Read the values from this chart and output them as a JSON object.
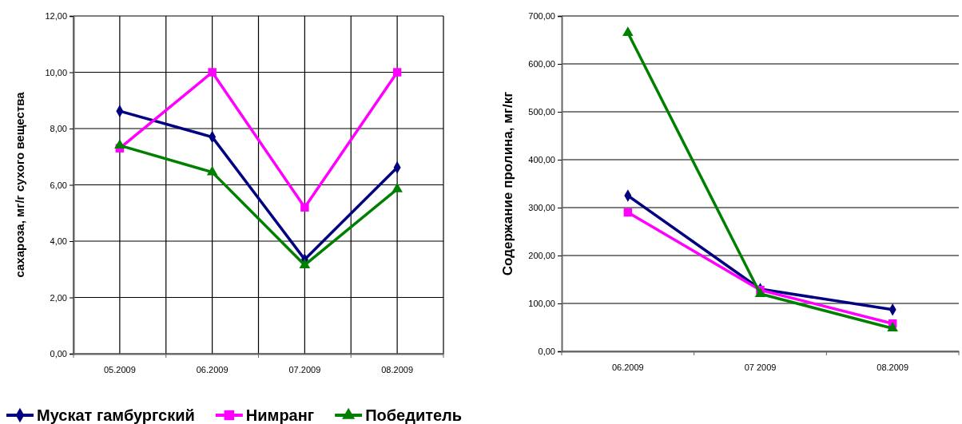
{
  "chart_data": [
    {
      "type": "line",
      "ylabel": "сахароза, мг/г сухого вещества",
      "categories": [
        "05.2009",
        "06.2009",
        "07.2009",
        "08.2009"
      ],
      "ylim": [
        0,
        12
      ],
      "yticks": [
        {
          "value": 0,
          "label": "0,00"
        },
        {
          "value": 2,
          "label": "2,00"
        },
        {
          "value": 4,
          "label": "4,00"
        },
        {
          "value": 6,
          "label": "6,00"
        },
        {
          "value": 8,
          "label": "8,00"
        },
        {
          "value": 10,
          "label": "10,00"
        },
        {
          "value": 12,
          "label": "12,00"
        }
      ],
      "grid": true,
      "legend": "bottom",
      "series": [
        {
          "name": "Мускат гамбургский",
          "color": "#000080",
          "marker": "diamond",
          "values": [
            8.62,
            7.7,
            3.35,
            6.62
          ]
        },
        {
          "name": "Нимранг",
          "color": "#ff00ff",
          "marker": "square",
          "values": [
            7.3,
            10.0,
            5.2,
            10.0
          ]
        },
        {
          "name": "Победитель",
          "color": "#008000",
          "marker": "triangle",
          "values": [
            7.4,
            6.45,
            3.15,
            5.85
          ]
        }
      ]
    },
    {
      "type": "line",
      "ylabel": "Содержание пролина, мг/кг",
      "categories": [
        "06.2009",
        "07 2009",
        "08.2009"
      ],
      "ylim": [
        0,
        700
      ],
      "yticks": [
        {
          "value": 0,
          "label": "0,00"
        },
        {
          "value": 100,
          "label": "100,00"
        },
        {
          "value": 200,
          "label": "200,00"
        },
        {
          "value": 300,
          "label": "300,00"
        },
        {
          "value": 400,
          "label": "400,00"
        },
        {
          "value": 500,
          "label": "500,00"
        },
        {
          "value": 600,
          "label": "600,00"
        },
        {
          "value": 700,
          "label": "700,00"
        }
      ],
      "grid": "y",
      "legend": false,
      "series": [
        {
          "color": "#000080",
          "marker": "diamond",
          "values": [
            325,
            130,
            87
          ]
        },
        {
          "color": "#ff00ff",
          "marker": "square",
          "values": [
            290,
            128,
            58
          ]
        },
        {
          "color": "#008000",
          "marker": "triangle",
          "values": [
            665,
            120,
            48
          ]
        }
      ]
    }
  ]
}
